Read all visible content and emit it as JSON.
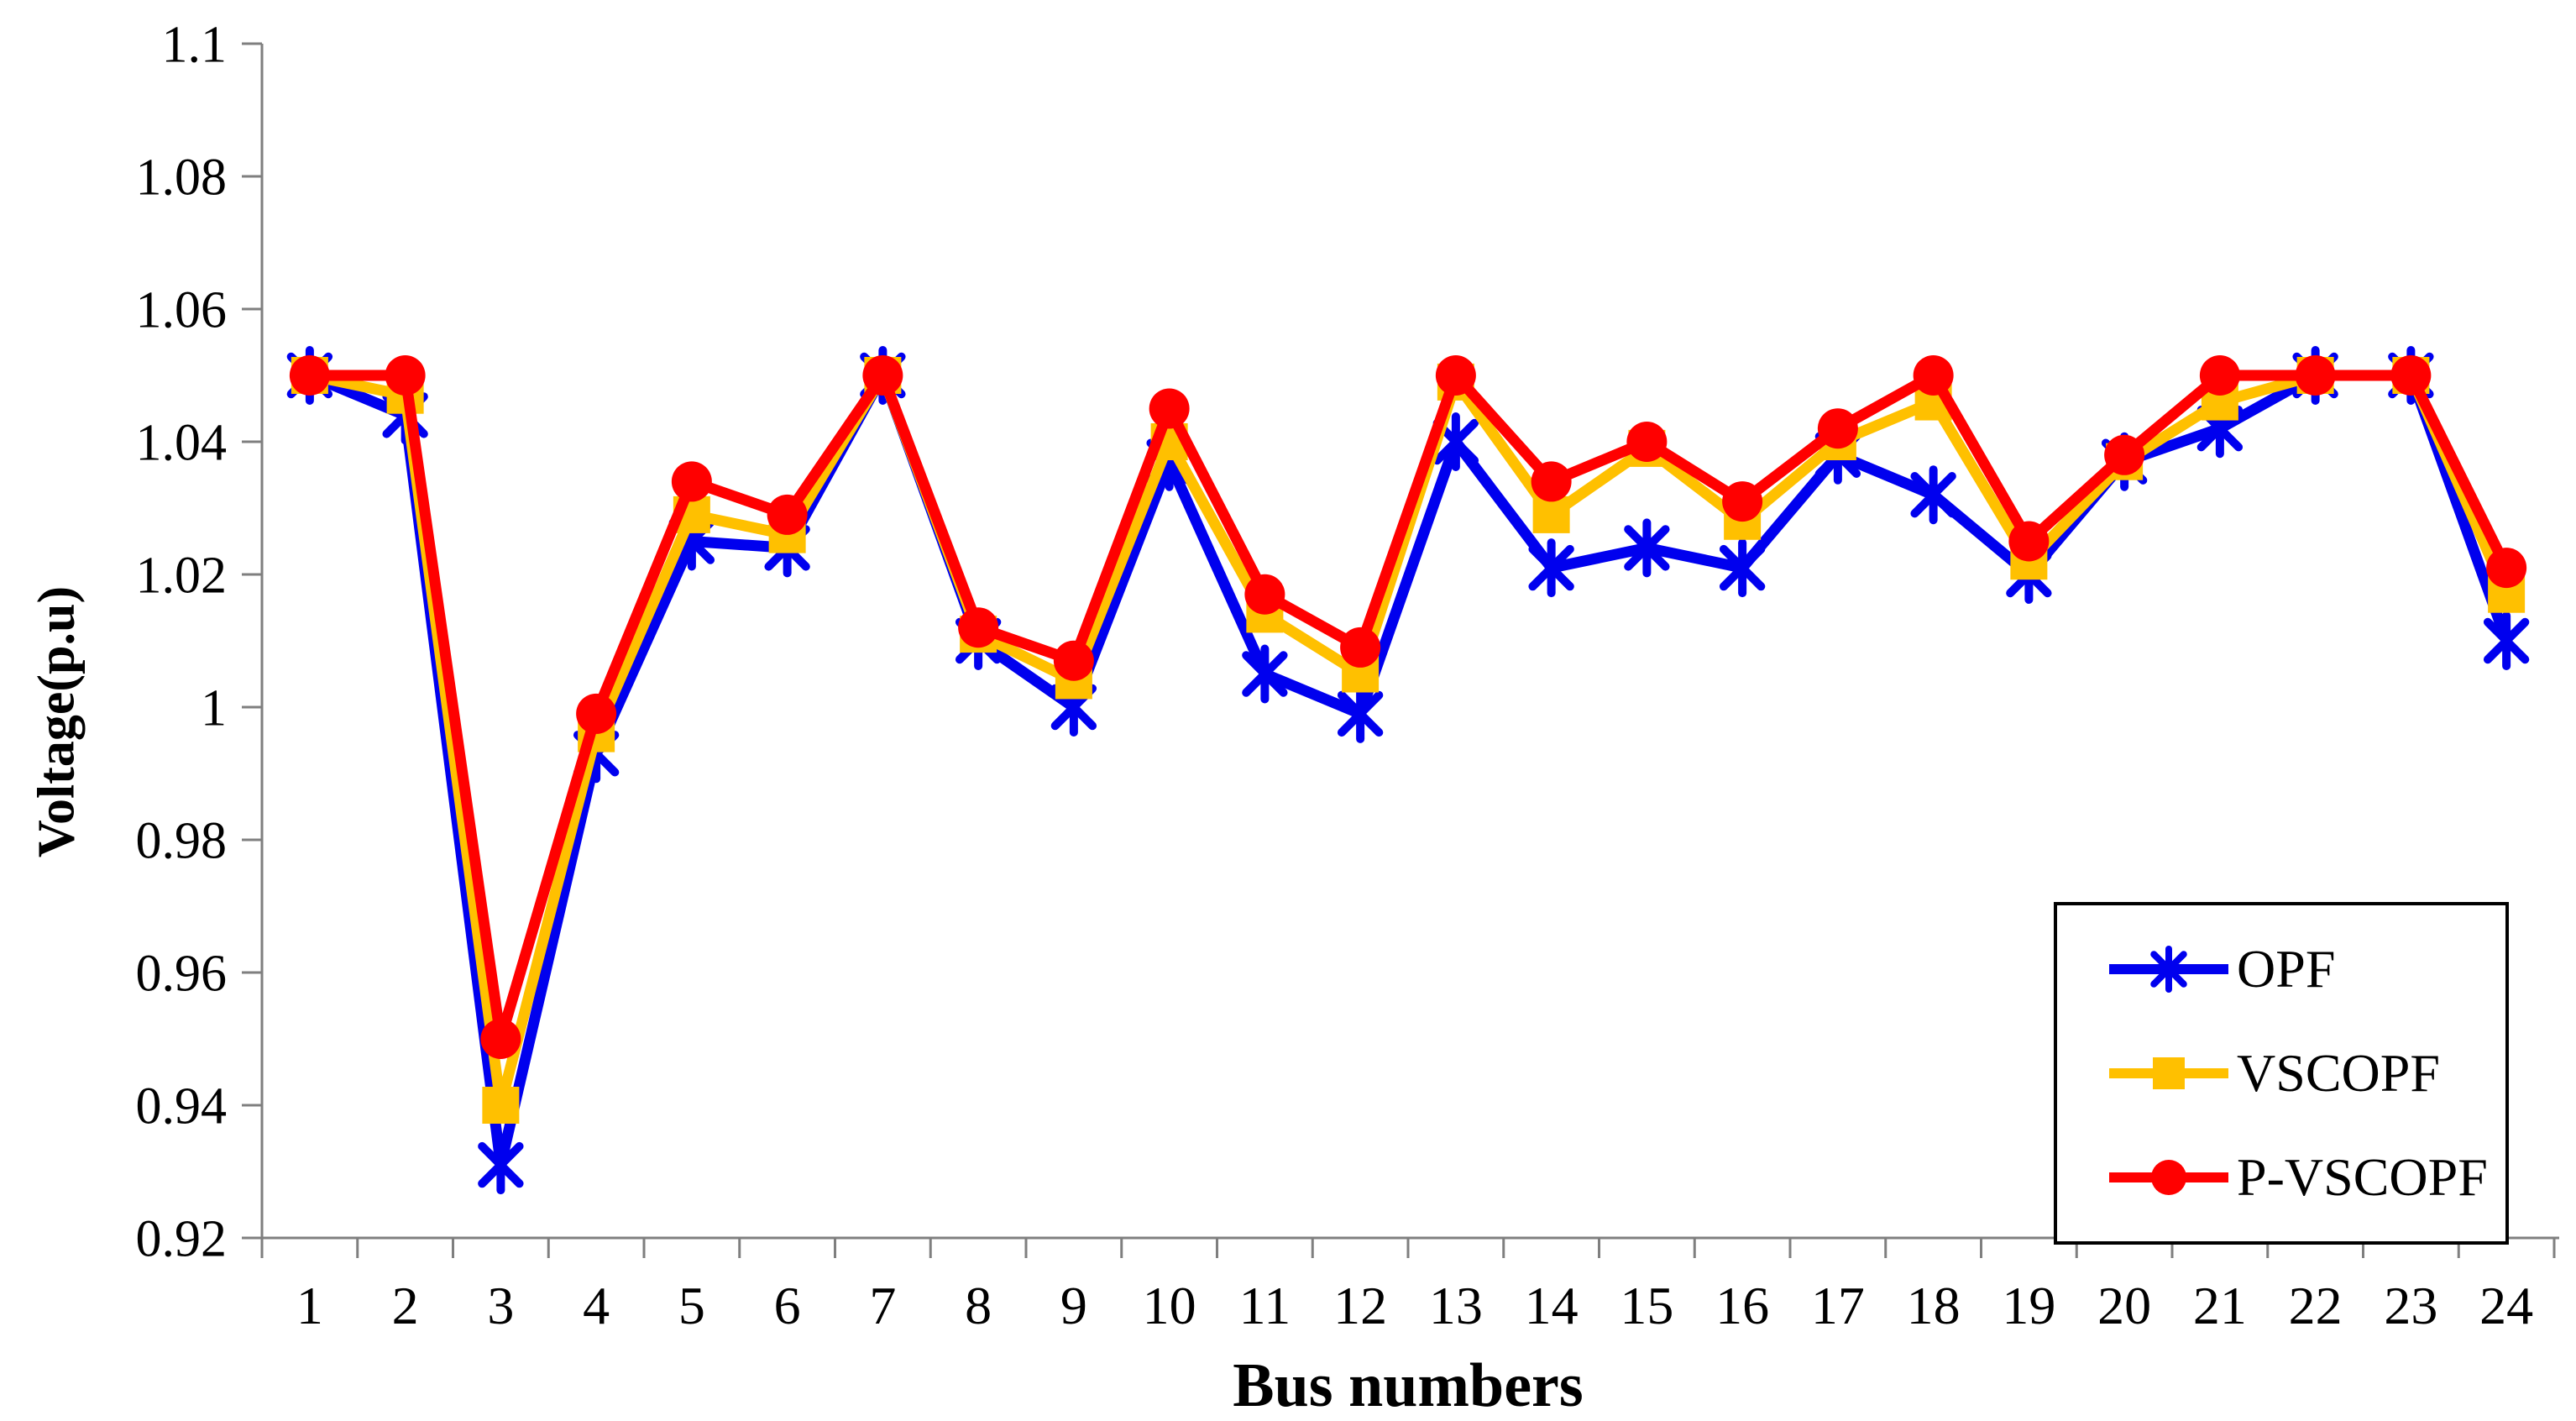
{
  "chart_data": {
    "type": "line",
    "title": "",
    "xlabel": "Bus numbers",
    "ylabel": "Voltage(p.u)",
    "categories": [
      1,
      2,
      3,
      4,
      5,
      6,
      7,
      8,
      9,
      10,
      11,
      12,
      13,
      14,
      15,
      16,
      17,
      18,
      19,
      20,
      21,
      22,
      23,
      24
    ],
    "series": [
      {
        "name": "OPF",
        "color": "#0000ee",
        "marker": "asterisk",
        "values": [
          1.05,
          1.044,
          0.931,
          0.993,
          1.025,
          1.024,
          1.05,
          1.01,
          1.0,
          1.037,
          1.005,
          0.999,
          1.04,
          1.021,
          1.024,
          1.021,
          1.038,
          1.032,
          1.02,
          1.037,
          1.042,
          1.05,
          1.05,
          1.01
        ]
      },
      {
        "name": "VSCOPF",
        "color": "#ffc000",
        "marker": "square",
        "values": [
          1.05,
          1.047,
          0.94,
          0.996,
          1.029,
          1.026,
          1.05,
          1.011,
          1.004,
          1.04,
          1.014,
          1.005,
          1.049,
          1.029,
          1.039,
          1.028,
          1.04,
          1.046,
          1.022,
          1.037,
          1.046,
          1.05,
          1.05,
          1.017
        ]
      },
      {
        "name": "P-VSCOPF",
        "color": "#ff0000",
        "marker": "circle",
        "values": [
          1.05,
          1.05,
          0.95,
          0.999,
          1.034,
          1.029,
          1.05,
          1.012,
          1.007,
          1.045,
          1.017,
          1.009,
          1.05,
          1.034,
          1.04,
          1.031,
          1.042,
          1.05,
          1.025,
          1.038,
          1.05,
          1.05,
          1.05,
          1.021
        ]
      }
    ],
    "ylim": [
      0.92,
      1.1
    ],
    "ytick_step": 0.02,
    "ytick_labels": [
      "0.92",
      "0.94",
      "0.96",
      "0.98",
      "1",
      "1.02",
      "1.04",
      "1.06",
      "1.08",
      "1.1"
    ],
    "grid": false,
    "legend_position": "inside-bottom-right",
    "axis_color": "#7f7f7f",
    "text_color": "#000000"
  }
}
